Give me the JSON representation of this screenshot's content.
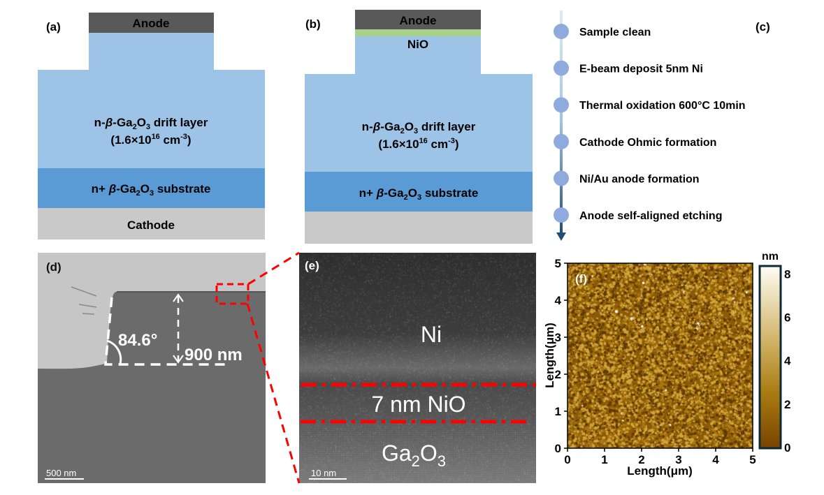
{
  "panel_a": {
    "label": "(a)",
    "anode": "Anode",
    "drift_prefix": "n-",
    "beta": "β",
    "drift_ga": "-Ga",
    "sub2": "2",
    "o": "O",
    "sub3": "3",
    "drift_suffix": " drift layer",
    "doping_prefix": "(1.6×10",
    "doping_exp": "16",
    "doping_unit": " cm",
    "doping_unit_exp": "-3",
    "doping_close": ")",
    "substrate_prefix": "n+ ",
    "substrate_suffix": " substrate",
    "cathode": "Cathode"
  },
  "panel_b": {
    "label": "(b)",
    "anode": "Anode",
    "nio": "NiO"
  },
  "panel_c": {
    "label": "(c)",
    "steps": [
      "Sample clean",
      "E-beam deposit 5nm Ni",
      "Thermal oxidation 600°C 10min",
      "Cathode Ohmic formation",
      "Ni/Au anode formation",
      "Anode self-aligned etching"
    ]
  },
  "panel_d": {
    "label": "(d)",
    "angle": "84.6°",
    "height": "900 nm",
    "scale_bar": "500 nm"
  },
  "panel_e": {
    "label": "(e)",
    "ni": "Ni",
    "nio": "7 nm NiO",
    "ga": "Ga",
    "sub2": "2",
    "o": "O",
    "sub3": "3",
    "scale_bar": "10 nm"
  },
  "panel_f": {
    "label": "(f)",
    "xlabel": "Length(μm)",
    "ylabel": "Length(μm)",
    "x_ticks": [
      "0",
      "1",
      "2",
      "3",
      "4",
      "5"
    ],
    "y_ticks": [
      "0",
      "1",
      "2",
      "3",
      "4",
      "5"
    ],
    "colorbar_unit": "nm",
    "colorbar_ticks": [
      "0",
      "2",
      "4",
      "6",
      "8"
    ],
    "xlim": [
      0,
      5
    ],
    "ylim": [
      0,
      5
    ],
    "zlim": [
      0,
      8.3
    ]
  },
  "colors": {
    "anode": "#595959",
    "nio": "#a9d18e",
    "drift": "#9dc3e6",
    "substrate": "#5b9bd5",
    "cathode": "#c9c9c9",
    "timeline_dot": "#8faadc",
    "timeline_dark": "#1f4e79",
    "annotation_red": "#ff0000"
  }
}
